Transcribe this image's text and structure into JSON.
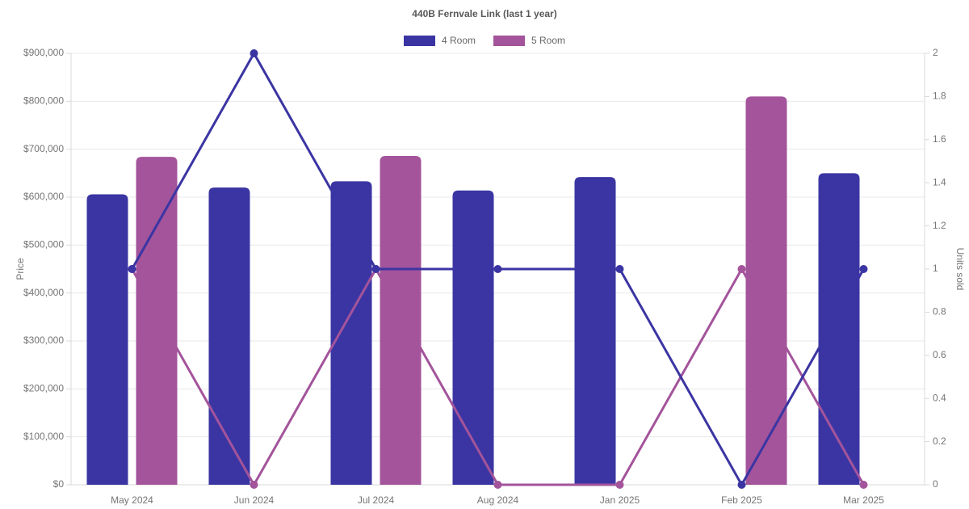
{
  "chart": {
    "title": "440B Fernvale Link (last 1 year)"
  },
  "chart_data": {
    "type": "bar+line combo",
    "title": "440B Fernvale Link (last 1 year)",
    "categories": [
      "May 2024",
      "Jun 2024",
      "Jul 2024",
      "Aug 2024",
      "Jan 2025",
      "Feb 2025",
      "Mar 2025"
    ],
    "series": [
      {
        "name": "4 Room",
        "color": "#3B35A3",
        "bar_axis": "price_left",
        "line_axis": "units_right",
        "prices": [
          606000,
          620000,
          633000,
          614000,
          642000,
          null,
          650000
        ],
        "units_sold": [
          1,
          2,
          1,
          1,
          1,
          0,
          1
        ]
      },
      {
        "name": "5 Room",
        "color": "#A3549B",
        "bar_axis": "price_left",
        "line_axis": "units_right",
        "prices": [
          684000,
          null,
          686000,
          null,
          null,
          810000,
          null
        ],
        "units_sold": [
          1,
          0,
          1,
          0,
          0,
          1,
          0
        ]
      }
    ],
    "y_left": {
      "label": "Price",
      "min": 0,
      "max": 900000,
      "step": 100000,
      "tick_format": "$#,##0"
    },
    "y_right": {
      "label": "Units sold",
      "min": 0,
      "max": 2,
      "step": 0.2
    },
    "grid": true,
    "legend_position": "top"
  },
  "palette": {
    "grid_line": "#e8e8e8",
    "axis_border": "#d9d9d9",
    "tick_text": "#757575",
    "title_text": "#58585b",
    "legend_text": "#666666",
    "background": "#ffffff"
  }
}
